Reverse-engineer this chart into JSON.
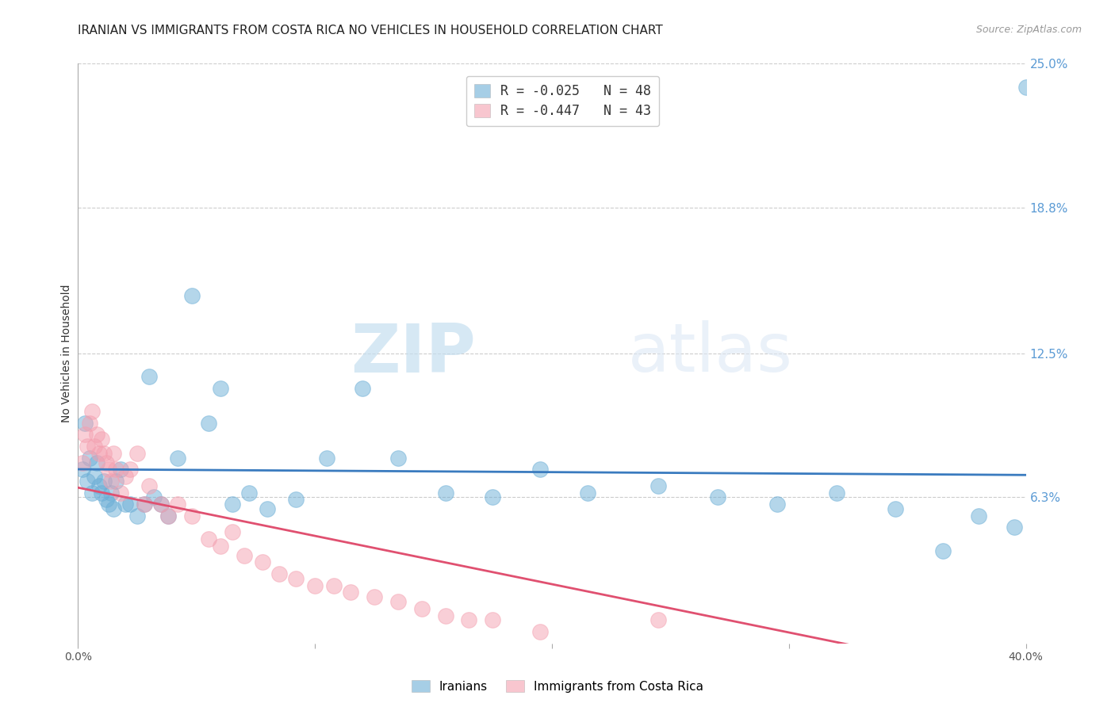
{
  "title": "IRANIAN VS IMMIGRANTS FROM COSTA RICA NO VEHICLES IN HOUSEHOLD CORRELATION CHART",
  "source": "Source: ZipAtlas.com",
  "ylabel": "No Vehicles in Household",
  "xlim": [
    0.0,
    0.4
  ],
  "ylim": [
    0.0,
    0.25
  ],
  "xtick_values": [
    0.0,
    0.1,
    0.2,
    0.3,
    0.4
  ],
  "xtick_labels": [
    "0.0%",
    "",
    "",
    "",
    "40.0%"
  ],
  "ytick_right_labels": [
    "25.0%",
    "18.8%",
    "12.5%",
    "6.3%"
  ],
  "ytick_right_values": [
    0.25,
    0.188,
    0.125,
    0.063
  ],
  "legend_r1": "R = -0.025",
  "legend_n1": "N = 48",
  "legend_r2": "R = -0.447",
  "legend_n2": "N = 43",
  "series1_label": "Iranians",
  "series2_label": "Immigrants from Costa Rica",
  "series1_color": "#6baed6",
  "series2_color": "#f4a0b0",
  "trendline1_color": "#3a7bbf",
  "trendline2_color": "#e05070",
  "series1_x": [
    0.002,
    0.003,
    0.004,
    0.005,
    0.006,
    0.007,
    0.008,
    0.009,
    0.01,
    0.011,
    0.012,
    0.013,
    0.014,
    0.015,
    0.016,
    0.018,
    0.02,
    0.022,
    0.025,
    0.028,
    0.03,
    0.032,
    0.035,
    0.038,
    0.042,
    0.048,
    0.055,
    0.06,
    0.065,
    0.072,
    0.08,
    0.092,
    0.105,
    0.12,
    0.135,
    0.155,
    0.175,
    0.195,
    0.215,
    0.245,
    0.27,
    0.295,
    0.32,
    0.345,
    0.365,
    0.38,
    0.395,
    0.4
  ],
  "series1_y": [
    0.075,
    0.095,
    0.07,
    0.08,
    0.065,
    0.072,
    0.078,
    0.068,
    0.065,
    0.07,
    0.062,
    0.06,
    0.065,
    0.058,
    0.07,
    0.075,
    0.06,
    0.06,
    0.055,
    0.06,
    0.115,
    0.063,
    0.06,
    0.055,
    0.08,
    0.15,
    0.095,
    0.11,
    0.06,
    0.065,
    0.058,
    0.062,
    0.08,
    0.11,
    0.08,
    0.065,
    0.063,
    0.075,
    0.065,
    0.068,
    0.063,
    0.06,
    0.065,
    0.058,
    0.04,
    0.055,
    0.05,
    0.24
  ],
  "series2_x": [
    0.002,
    0.003,
    0.004,
    0.005,
    0.006,
    0.007,
    0.008,
    0.009,
    0.01,
    0.011,
    0.012,
    0.013,
    0.014,
    0.015,
    0.016,
    0.018,
    0.02,
    0.022,
    0.025,
    0.028,
    0.03,
    0.035,
    0.038,
    0.042,
    0.048,
    0.055,
    0.06,
    0.065,
    0.07,
    0.078,
    0.085,
    0.092,
    0.1,
    0.108,
    0.115,
    0.125,
    0.135,
    0.145,
    0.155,
    0.165,
    0.175,
    0.195,
    0.245
  ],
  "series2_y": [
    0.078,
    0.09,
    0.085,
    0.095,
    0.1,
    0.085,
    0.09,
    0.082,
    0.088,
    0.082,
    0.078,
    0.075,
    0.07,
    0.082,
    0.075,
    0.065,
    0.072,
    0.075,
    0.082,
    0.06,
    0.068,
    0.06,
    0.055,
    0.06,
    0.055,
    0.045,
    0.042,
    0.048,
    0.038,
    0.035,
    0.03,
    0.028,
    0.025,
    0.025,
    0.022,
    0.02,
    0.018,
    0.015,
    0.012,
    0.01,
    0.01,
    0.005,
    0.01
  ],
  "watermark_zip": "ZIP",
  "watermark_atlas": "atlas",
  "background_color": "#ffffff",
  "grid_color": "#cccccc",
  "title_fontsize": 11,
  "axis_label_fontsize": 10,
  "tick_fontsize": 10,
  "source_fontsize": 9
}
